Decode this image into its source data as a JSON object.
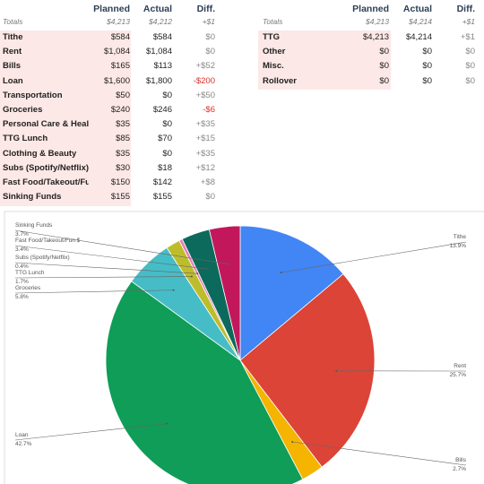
{
  "left_table": {
    "headers": [
      "Planned",
      "Actual",
      "Diff."
    ],
    "totals": {
      "label": "Totals",
      "values": [
        "$4,213",
        "$4,212",
        "+$1"
      ]
    },
    "rows": [
      [
        "Tithe",
        "$584",
        "$584",
        "$0"
      ],
      [
        "Rent",
        "$1,084",
        "$1,084",
        "$0"
      ],
      [
        "Bills",
        "$165",
        "$113",
        "+$52"
      ],
      [
        "Loan",
        "$1,600",
        "$1,800",
        "-$200"
      ],
      [
        "Transportation",
        "$50",
        "$0",
        "+$50"
      ],
      [
        "Groceries",
        "$240",
        "$246",
        "-$6"
      ],
      [
        "Personal Care & Health",
        "$35",
        "$0",
        "+$35"
      ],
      [
        "TTG Lunch",
        "$85",
        "$70",
        "+$15"
      ],
      [
        "Clothing & Beauty",
        "$35",
        "$0",
        "+$35"
      ],
      [
        "Subs (Spotify/Netflix)",
        "$30",
        "$18",
        "+$12"
      ],
      [
        "Fast Food/Takeout/Fun $",
        "$150",
        "$142",
        "+$8"
      ],
      [
        "Sinking Funds",
        "$155",
        "$155",
        "$0"
      ]
    ]
  },
  "right_table": {
    "headers": [
      "Planned",
      "Actual",
      "Diff."
    ],
    "totals": {
      "label": "Totals",
      "values": [
        "$4,213",
        "$4,214",
        "+$1"
      ]
    },
    "rows": [
      [
        "TTG",
        "$4,213",
        "$4,214",
        "+$1"
      ],
      [
        "Other",
        "$0",
        "$0",
        "$0"
      ],
      [
        "Misc.",
        "$0",
        "$0",
        "$0"
      ],
      [
        "Rollover",
        "$0",
        "$0",
        "$0"
      ]
    ]
  },
  "chart_data": {
    "type": "pie",
    "categories": [
      "Tithe",
      "Rent",
      "Bills",
      "Loan",
      "Groceries",
      "TTG Lunch",
      "Subs (Spotify/Netflix)",
      "Fast Food/Takeout/Fun $",
      "Sinking Funds"
    ],
    "values": [
      13.9,
      25.7,
      2.7,
      42.7,
      5.8,
      1.7,
      0.4,
      3.4,
      3.7
    ],
    "value_labels": [
      "13.9%",
      "25.7%",
      "2.7%",
      "42.7%",
      "5.8%",
      "1.7%",
      "0.4%",
      "3.4%",
      "3.7%"
    ],
    "colors": [
      "#4285f4",
      "#db4437",
      "#f4b400",
      "#0f9d58",
      "#46bdc6",
      "#bdbd2c",
      "#e57fb5",
      "#0b6a5b",
      "#c2185b"
    ]
  }
}
